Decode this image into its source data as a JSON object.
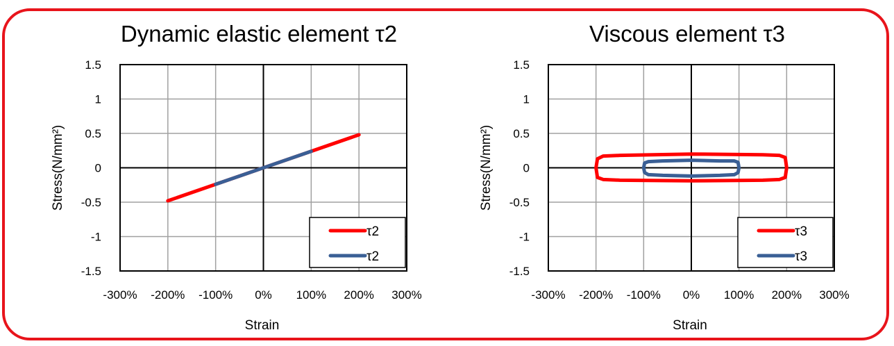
{
  "colors": {
    "frame": "#e8141b",
    "red": "#ff0000",
    "blue": "#3a5f95"
  },
  "chart_data": [
    {
      "type": "line",
      "title": "Dynamic elastic element τ2",
      "xlabel": "Strain",
      "ylabel": "Stress(N/mm²)",
      "xlim": [
        -300,
        300
      ],
      "ylim": [
        -1.5,
        1.5
      ],
      "xticks": [
        "-300%",
        "-200%",
        "-100%",
        "0%",
        "100%",
        "200%",
        "300%"
      ],
      "xtick_values": [
        -300,
        -200,
        -100,
        0,
        100,
        200,
        300
      ],
      "yticks": [
        "1.5",
        "1",
        "0.5",
        "0",
        "-0.5",
        "-1",
        "-1.5"
      ],
      "ytick_values": [
        1.5,
        1,
        0.5,
        0,
        -0.5,
        -1,
        -1.5
      ],
      "grid": true,
      "legend_position": "bottom-right",
      "series": [
        {
          "name": "τ2",
          "color": "#ff0000",
          "x": [
            -200,
            200
          ],
          "y": [
            -0.48,
            0.48
          ]
        },
        {
          "name": "τ2",
          "color": "#3a5f95",
          "x": [
            -100,
            100
          ],
          "y": [
            -0.24,
            0.24
          ]
        }
      ]
    },
    {
      "type": "line",
      "title": "Viscous element τ3",
      "xlabel": "Strain",
      "ylabel": "Stress(N/mm²)",
      "xlim": [
        -300,
        300
      ],
      "ylim": [
        -1.5,
        1.5
      ],
      "xticks": [
        "-300%",
        "-200%",
        "-100%",
        "0%",
        "100%",
        "200%",
        "300%"
      ],
      "xtick_values": [
        -300,
        -200,
        -100,
        0,
        100,
        200,
        300
      ],
      "yticks": [
        "1.5",
        "1",
        "0.5",
        "0",
        "-0.5",
        "-1",
        "-1.5"
      ],
      "ytick_values": [
        1.5,
        1,
        0.5,
        0,
        -0.5,
        -1,
        -1.5
      ],
      "grid": true,
      "legend_position": "bottom-right",
      "series": [
        {
          "name": "τ3",
          "color": "#ff0000",
          "x": [
            -200,
            -197,
            -185,
            -150,
            0,
            150,
            185,
            197,
            200,
            197,
            185,
            150,
            0,
            -150,
            -185,
            -197,
            -200
          ],
          "y": [
            0,
            0.13,
            0.17,
            0.18,
            0.2,
            0.19,
            0.18,
            0.15,
            0,
            -0.14,
            -0.17,
            -0.18,
            -0.19,
            -0.18,
            -0.17,
            -0.14,
            0
          ]
        },
        {
          "name": "τ3",
          "color": "#3a5f95",
          "x": [
            -100,
            -98,
            -90,
            -60,
            0,
            60,
            90,
            98,
            100,
            98,
            90,
            60,
            0,
            -60,
            -90,
            -98,
            -100
          ],
          "y": [
            0,
            0.07,
            0.09,
            0.1,
            0.11,
            0.1,
            0.1,
            0.08,
            0,
            -0.07,
            -0.1,
            -0.11,
            -0.12,
            -0.11,
            -0.1,
            -0.07,
            0
          ]
        }
      ]
    }
  ]
}
